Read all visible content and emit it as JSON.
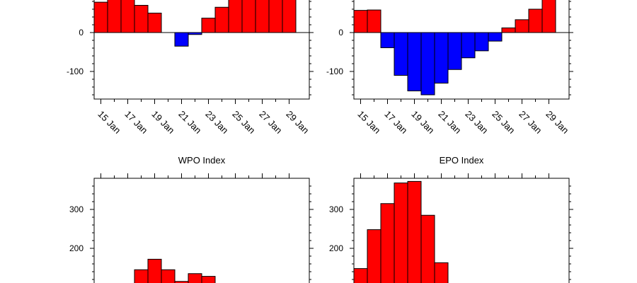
{
  "colors": {
    "positive": "#ff0000",
    "negative": "#0000ff",
    "outline": "#000000"
  },
  "chart_data": [
    {
      "type": "bar",
      "title": "",
      "xlabel": "",
      "ylabel": "",
      "x": [
        15,
        16,
        17,
        18,
        19,
        20,
        21,
        22,
        23,
        24,
        25,
        26,
        27,
        28,
        29
      ],
      "values": [
        78,
        88,
        88,
        70,
        50,
        0,
        -35,
        -5,
        37,
        65,
        85,
        88,
        88,
        88,
        88
      ],
      "x_tick_labels": [
        "15 Jan",
        "17 Jan",
        "19 Jan",
        "21 Jan",
        "23 Jan",
        "25 Jan",
        "27 Jan",
        "29 Jan"
      ],
      "x_tick_positions": [
        15,
        17,
        19,
        21,
        23,
        25,
        27,
        29
      ],
      "y_tick_labels": [
        "0",
        "-100"
      ],
      "y_tick_values": [
        0,
        -100
      ],
      "y_tick_values_all": [
        -100,
        0,
        100
      ]
    },
    {
      "type": "bar",
      "title": "",
      "xlabel": "",
      "ylabel": "",
      "x": [
        15,
        16,
        17,
        18,
        19,
        20,
        21,
        22,
        23,
        24,
        25,
        26,
        27,
        28,
        29
      ],
      "values": [
        57,
        58,
        -39,
        -110,
        -150,
        -160,
        -130,
        -95,
        -65,
        -47,
        -22,
        12,
        33,
        60,
        88
      ],
      "x_tick_labels": [
        "15 Jan",
        "17 Jan",
        "19 Jan",
        "21 Jan",
        "23 Jan",
        "25 Jan",
        "27 Jan",
        "29 Jan"
      ],
      "x_tick_positions": [
        15,
        17,
        19,
        21,
        23,
        25,
        27,
        29
      ],
      "y_tick_labels": [
        "0",
        "-100"
      ],
      "y_tick_values": [
        0,
        -100
      ],
      "y_tick_values_all": [
        -100,
        0,
        100
      ]
    },
    {
      "type": "bar",
      "title": "WPO Index",
      "xlabel": "",
      "ylabel": "",
      "x": [
        15,
        16,
        17,
        18,
        19,
        20,
        21,
        22,
        23,
        24,
        25,
        26,
        27,
        28,
        29
      ],
      "values": [
        0,
        0,
        0,
        145,
        172,
        145,
        115,
        135,
        128,
        0,
        0,
        0,
        0,
        0,
        0
      ],
      "y_tick_labels": [
        "300",
        "200"
      ],
      "y_tick_values": [
        300,
        200
      ],
      "y_tick_values_all": [
        100,
        200,
        300
      ]
    },
    {
      "type": "bar",
      "title": "EPO Index",
      "xlabel": "",
      "ylabel": "",
      "x": [
        15,
        16,
        17,
        18,
        19,
        20,
        21,
        22,
        23,
        24,
        25,
        26,
        27,
        28,
        29
      ],
      "values": [
        148,
        248,
        315,
        368,
        372,
        285,
        163,
        0,
        0,
        0,
        0,
        0,
        0,
        0,
        0
      ],
      "y_tick_labels": [
        "300",
        "200"
      ],
      "y_tick_values": [
        300,
        200
      ],
      "y_tick_values_all": [
        100,
        200,
        300
      ]
    }
  ]
}
